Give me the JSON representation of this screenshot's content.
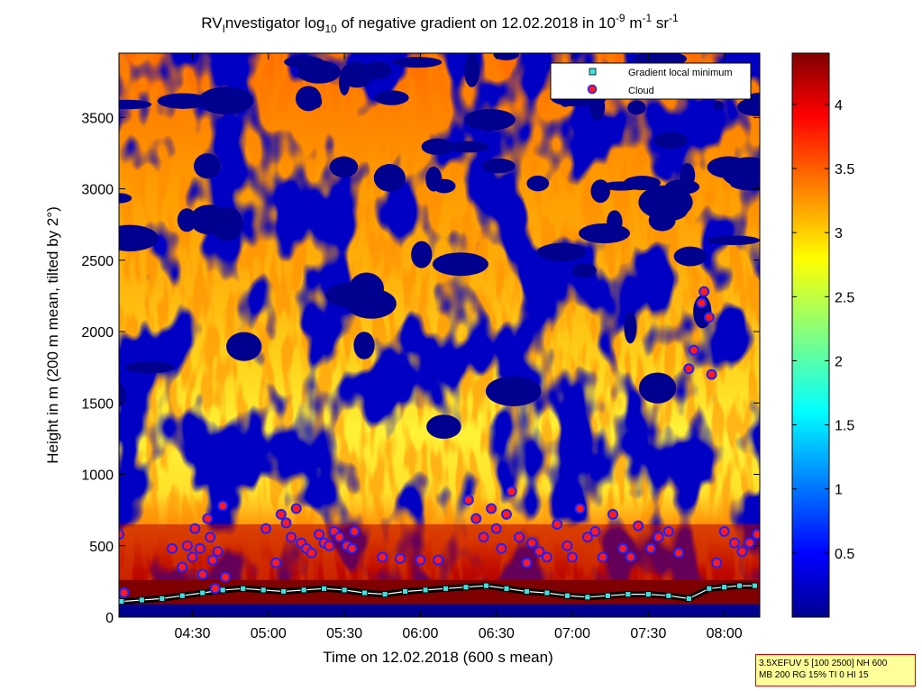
{
  "chart_data": {
    "type": "heatmap",
    "title": {
      "prefix": "RV",
      "sub_i": "I",
      "middle": "nvestigator log",
      "sub_10": "10",
      "suffix": " of negative gradient on 12.02.2018 in 10",
      "exp1": "-9",
      "unit_m": " m",
      "exp2": "-1",
      "unit_sr": " sr",
      "exp3": "-1"
    },
    "xlabel": "Time on 12.02.2018 (600 s mean)",
    "ylabel": "Height in m (200 m mean, tilted by 2°)",
    "x_ticks": [
      "04:30",
      "05:00",
      "05:30",
      "06:00",
      "06:30",
      "07:00",
      "07:30",
      "08:00"
    ],
    "x_tick_minutes": [
      270,
      300,
      330,
      360,
      390,
      420,
      450,
      480
    ],
    "xlim_minutes": [
      241,
      494
    ],
    "y_ticks": [
      "0",
      "500",
      "1000",
      "1500",
      "2000",
      "2500",
      "3000",
      "3500"
    ],
    "y_tick_values": [
      0,
      500,
      1000,
      1500,
      2000,
      2500,
      3000,
      3500
    ],
    "ylim": [
      0,
      3950
    ],
    "colorbar": {
      "ticks": [
        "0.5",
        "1",
        "1.5",
        "2",
        "2.5",
        "3",
        "3.5",
        "4"
      ],
      "tick_values": [
        0.5,
        1,
        1.5,
        2,
        2.5,
        3,
        3.5,
        4
      ],
      "range": [
        0,
        4.4
      ],
      "colormap": "jet"
    },
    "legend": {
      "position": "top-right",
      "entries": [
        {
          "label": "Gradient local minimum",
          "marker": "square",
          "color": "#3fe0e0"
        },
        {
          "label": "Cloud",
          "marker": "circle",
          "color": "#ff1a1a",
          "edge": "#2020ff"
        }
      ]
    },
    "gradient_local_minimum": {
      "x_minutes": [
        242,
        250,
        258,
        266,
        274,
        282,
        290,
        298,
        306,
        314,
        322,
        330,
        338,
        346,
        354,
        362,
        370,
        378,
        386,
        394,
        402,
        410,
        418,
        426,
        434,
        442,
        450,
        458,
        466,
        474,
        480,
        486,
        492
      ],
      "y": [
        110,
        120,
        130,
        150,
        170,
        190,
        200,
        190,
        180,
        190,
        200,
        190,
        170,
        160,
        180,
        190,
        200,
        210,
        220,
        200,
        180,
        170,
        150,
        140,
        150,
        160,
        160,
        150,
        130,
        200,
        210,
        220,
        220
      ]
    },
    "cloud": {
      "x_minutes": [
        241,
        243,
        262,
        266,
        268,
        270,
        271,
        273,
        274,
        276,
        277,
        278,
        279,
        280,
        282,
        283,
        299,
        303,
        305,
        307,
        309,
        311,
        313,
        315,
        317,
        320,
        322,
        324,
        326,
        328,
        331,
        333,
        334,
        345,
        352,
        360,
        367,
        379,
        382,
        385,
        388,
        390,
        392,
        394,
        396,
        399,
        402,
        404,
        407,
        410,
        414,
        418,
        420,
        423,
        426,
        429,
        432,
        436,
        440,
        443,
        446,
        451,
        454,
        458,
        462,
        466,
        468,
        471,
        472,
        474,
        475,
        477,
        480,
        484,
        487,
        490,
        493
      ],
      "y": [
        580,
        170,
        480,
        350,
        500,
        420,
        620,
        480,
        300,
        690,
        560,
        400,
        200,
        460,
        780,
        280,
        620,
        380,
        720,
        660,
        560,
        760,
        520,
        480,
        450,
        580,
        520,
        500,
        600,
        560,
        500,
        480,
        600,
        420,
        410,
        400,
        400,
        820,
        690,
        560,
        760,
        620,
        480,
        720,
        880,
        560,
        380,
        520,
        460,
        420,
        650,
        500,
        420,
        760,
        560,
        600,
        420,
        720,
        480,
        420,
        640,
        480,
        560,
        600,
        450,
        1740,
        1870,
        2200,
        2280,
        2100,
        1700,
        380,
        600,
        520,
        460,
        520,
        580
      ]
    },
    "info_lines": [
      "3.5XEFUV 5 [100 2500] NH 600",
      "MB 200 RG 15% TI 0 HI 15"
    ]
  }
}
